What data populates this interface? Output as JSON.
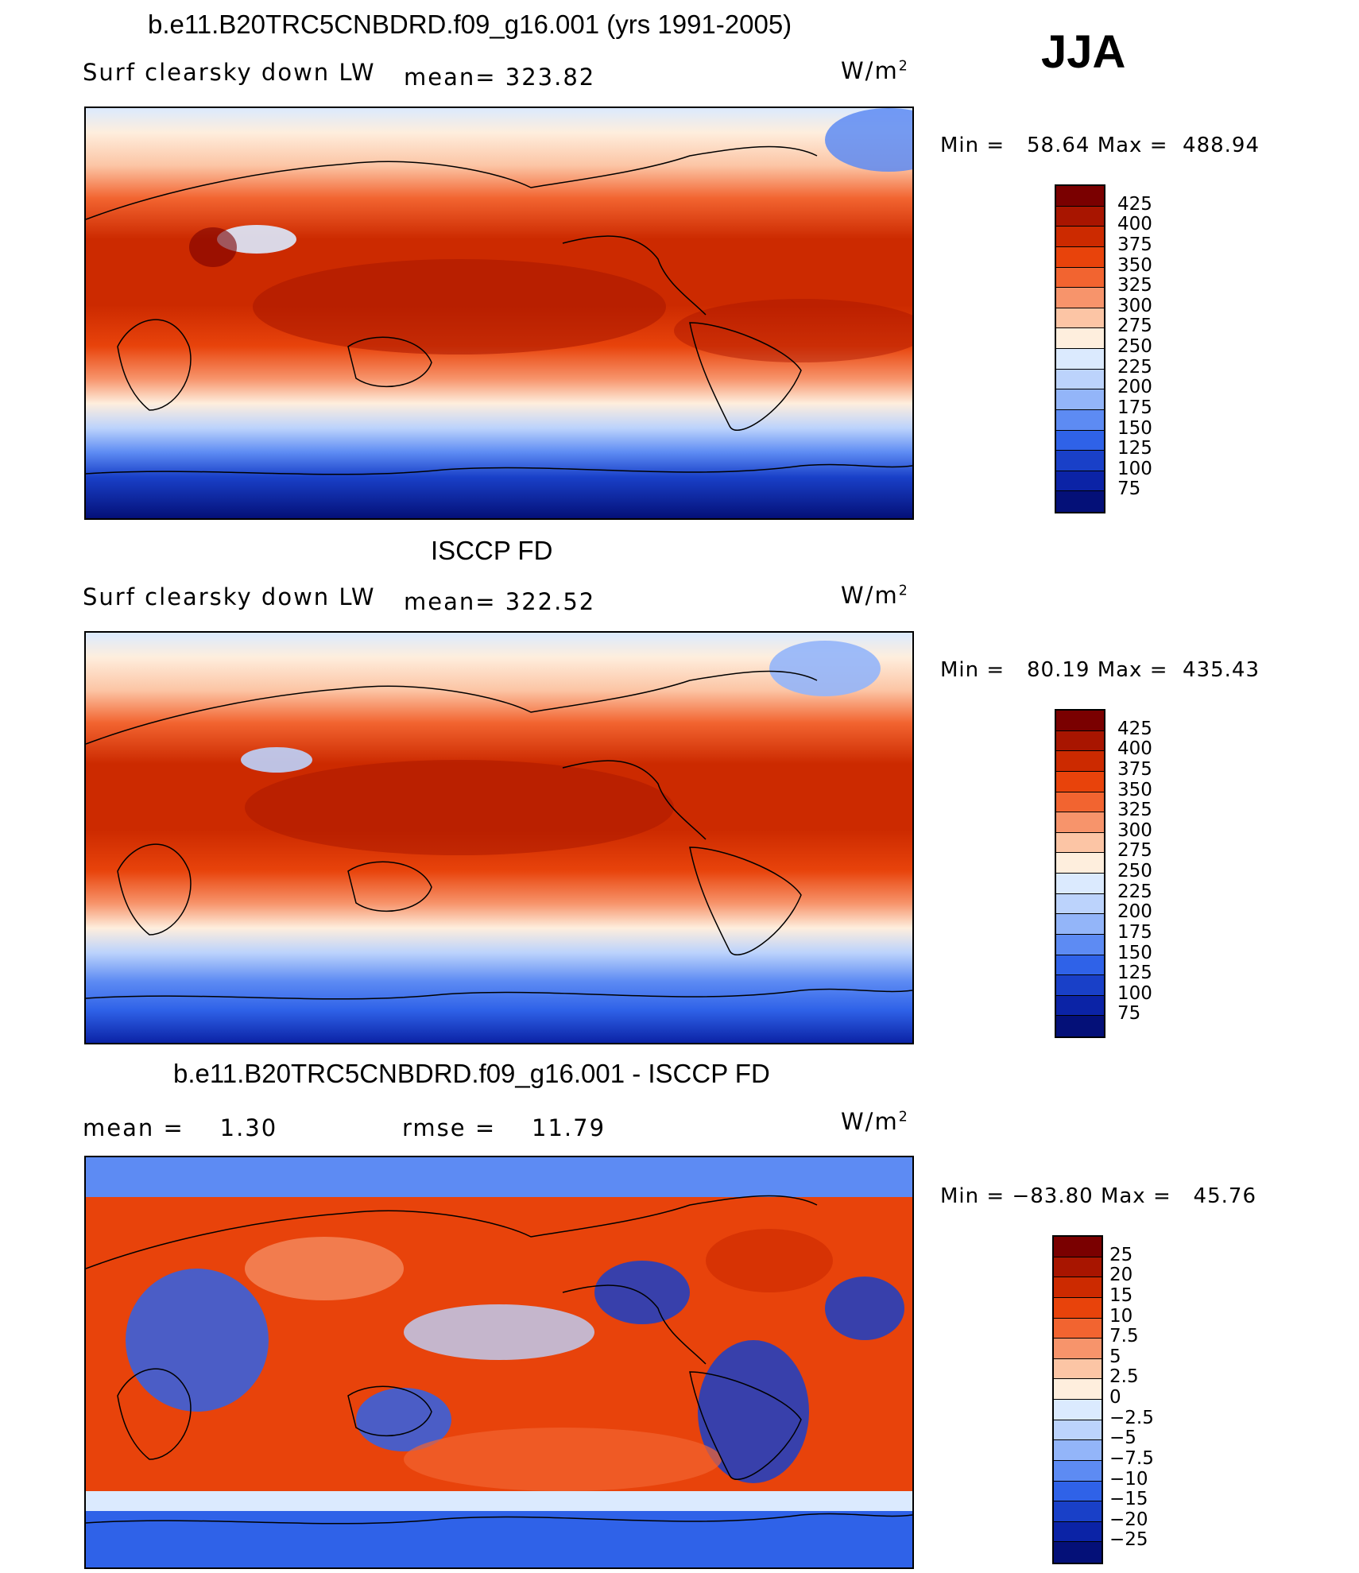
{
  "season": "JJA",
  "panels": [
    {
      "title": "b.e11.B20TRC5CNBDRD.f09_g16.001 (yrs 1991-2005)",
      "left_text": "Surf clearsky down LW",
      "center_text": "mean= 323.82",
      "units": "W/m",
      "units_sup": "2",
      "min_label": "Min =",
      "min_value": "58.64",
      "max_label": "Max =",
      "max_value": "488.94",
      "levels": [
        "425",
        "400",
        "375",
        "350",
        "325",
        "300",
        "275",
        "250",
        "225",
        "200",
        "175",
        "150",
        "125",
        "100",
        "75"
      ]
    },
    {
      "title": "ISCCP FD",
      "left_text": "Surf clearsky down LW",
      "center_text": "mean= 322.52",
      "units": "W/m",
      "units_sup": "2",
      "min_label": "Min =",
      "min_value": "80.19",
      "max_label": "Max =",
      "max_value": "435.43",
      "levels": [
        "425",
        "400",
        "375",
        "350",
        "325",
        "300",
        "275",
        "250",
        "225",
        "200",
        "175",
        "150",
        "125",
        "100",
        "75"
      ]
    },
    {
      "title": "b.e11.B20TRC5CNBDRD.f09_g16.001 - ISCCP FD",
      "left_text": "mean =    1.30",
      "center_text": "rmse =    11.79",
      "units": "W/m",
      "units_sup": "2",
      "min_label": "Min =",
      "min_value": "−83.80",
      "max_label": "Max =",
      "max_value": "45.76",
      "levels": [
        "25",
        "20",
        "15",
        "10",
        "7.5",
        "5",
        "2.5",
        "0",
        "−2.5",
        "−5",
        "−7.5",
        "−10",
        "−15",
        "−20",
        "−25"
      ]
    }
  ],
  "colors": {
    "abs_scale": [
      "#7a0000",
      "#a81500",
      "#cc2a00",
      "#e8430b",
      "#f26430",
      "#f7946b",
      "#fcc5a5",
      "#feeedd",
      "#dbeafe",
      "#bcd3fc",
      "#93b5f9",
      "#5d8bf3",
      "#2f62e8",
      "#1940c8",
      "#0b23a6",
      "#041078"
    ],
    "diff_scale": [
      "#7a0000",
      "#a81500",
      "#cc2a00",
      "#e8430b",
      "#f26430",
      "#f7946b",
      "#fcc5a5",
      "#feeedd",
      "#dbeafe",
      "#bcd3fc",
      "#93b5f9",
      "#5d8bf3",
      "#2f62e8",
      "#1940c8",
      "#0b23a6",
      "#041078"
    ]
  }
}
